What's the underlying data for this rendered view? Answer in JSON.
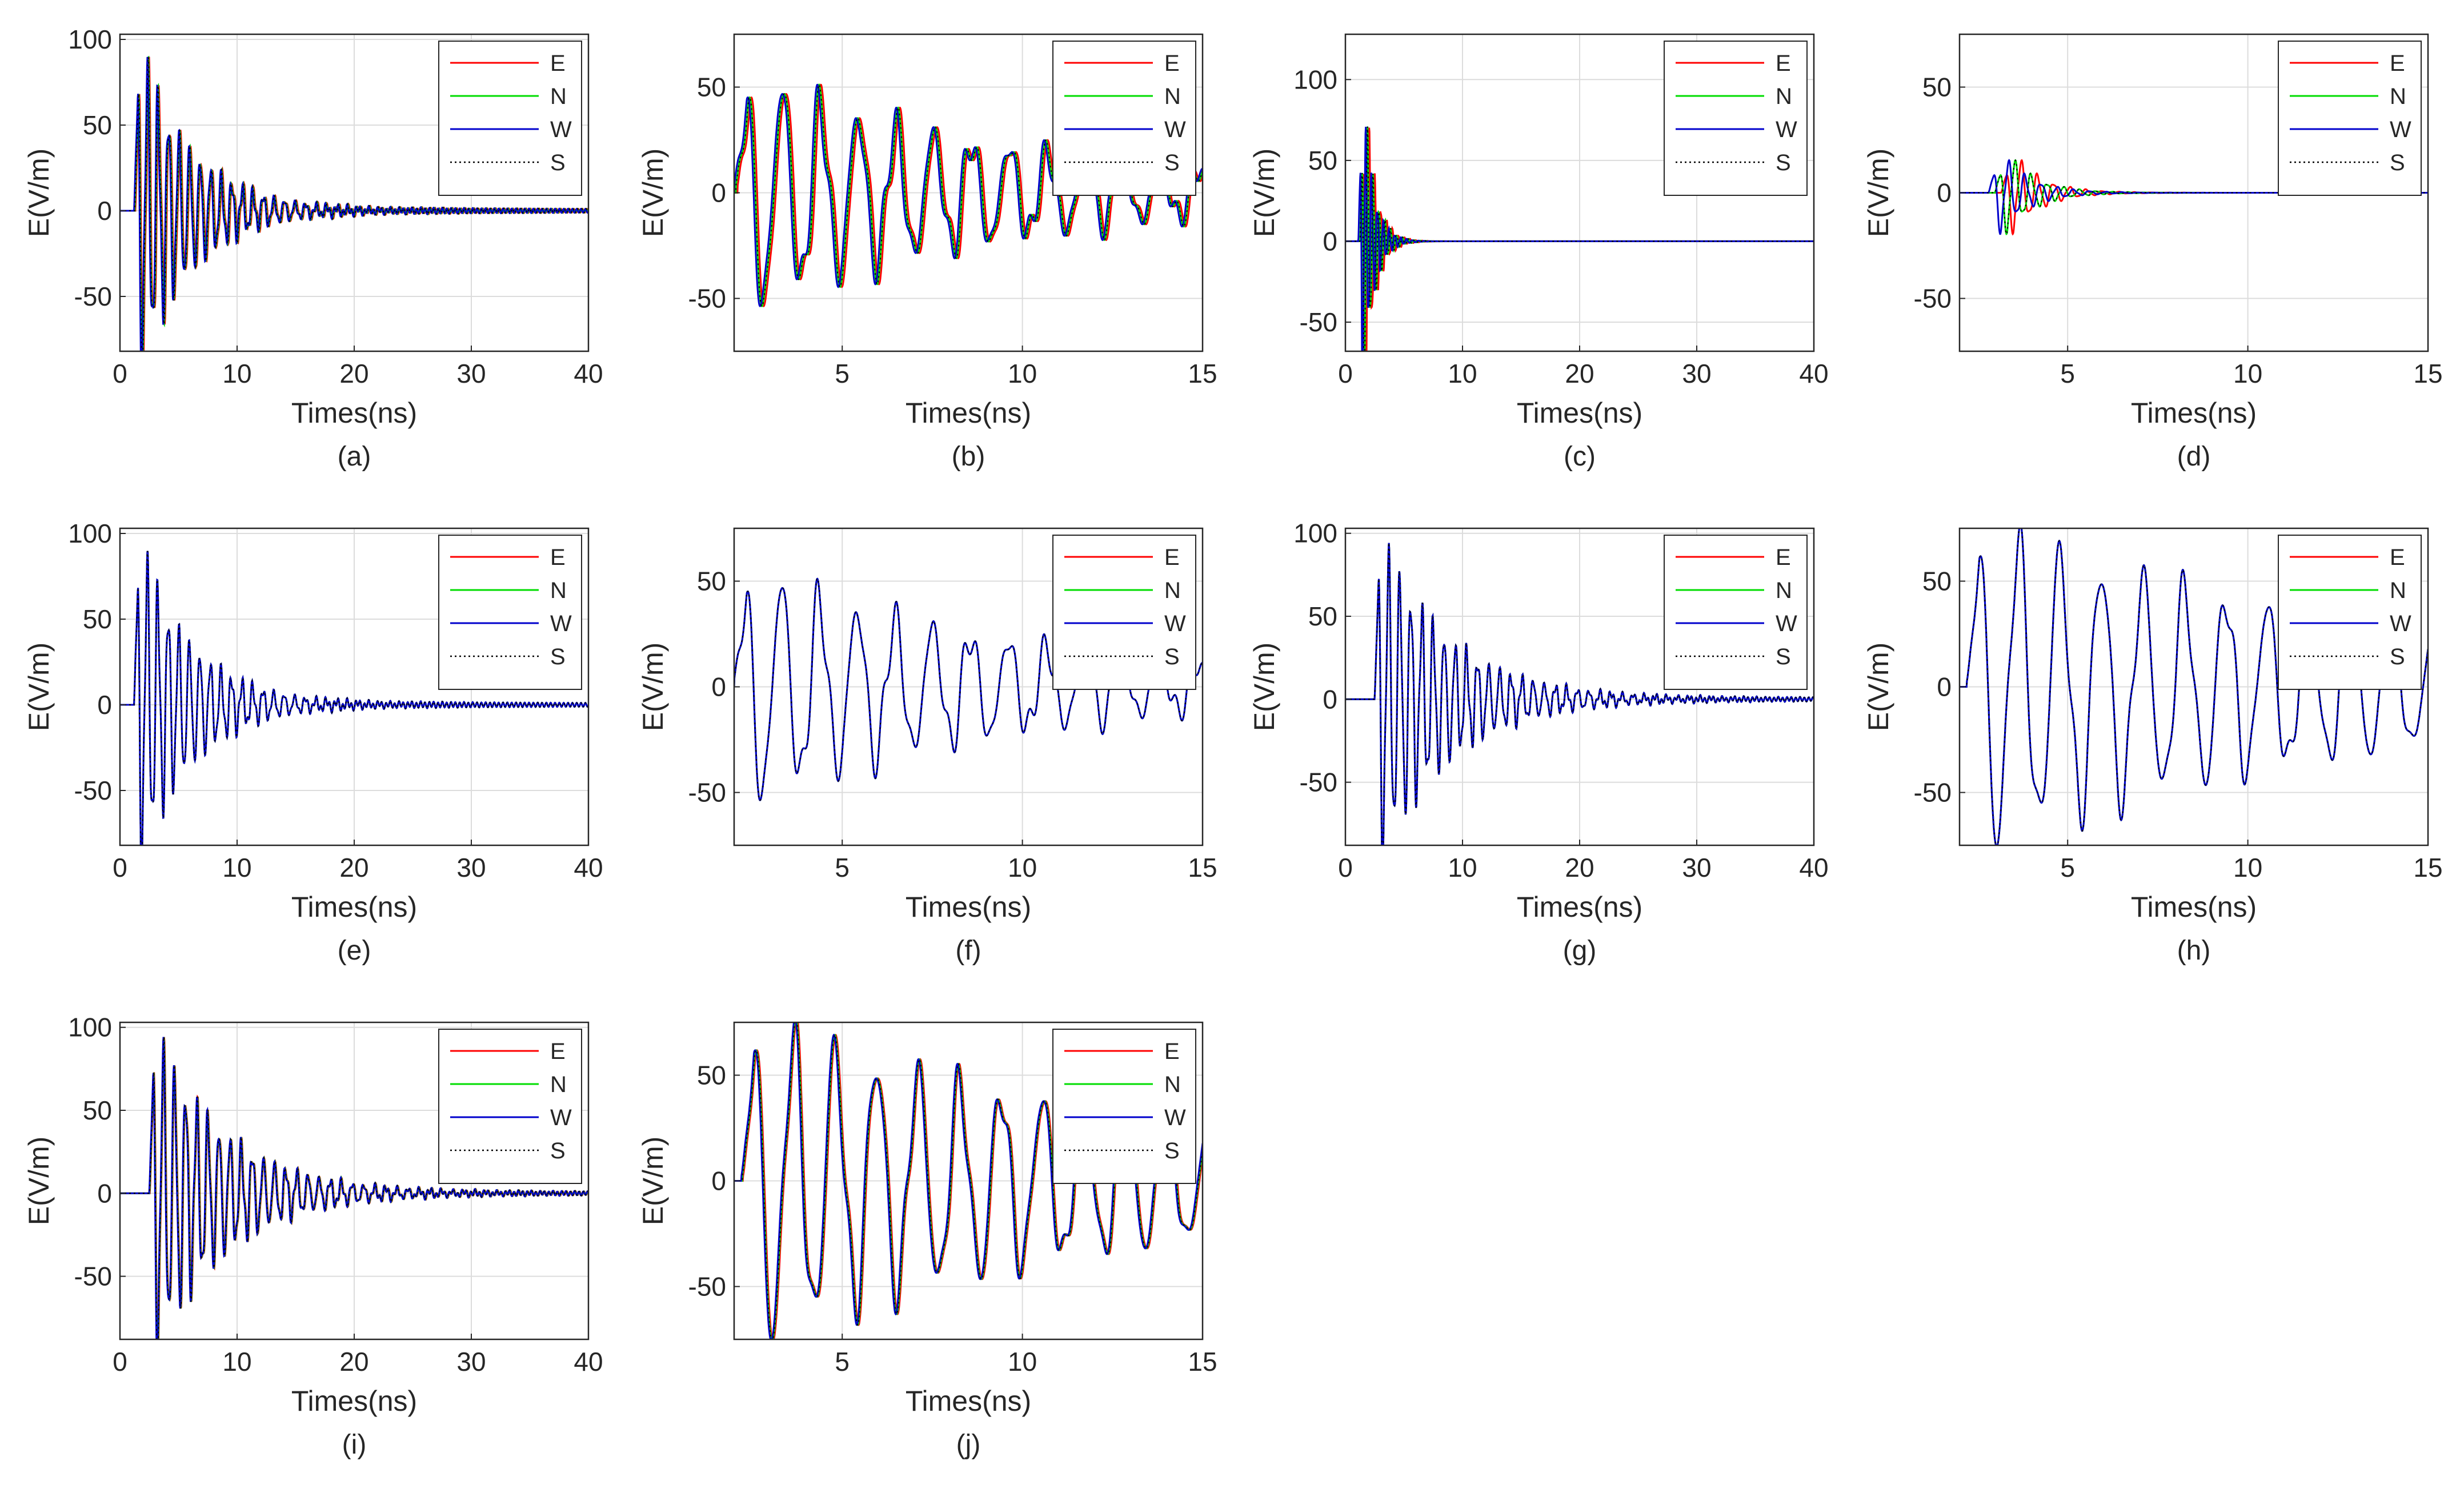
{
  "figure": {
    "legend": [
      {
        "label": "E",
        "color": "#ff0000",
        "style": "solid"
      },
      {
        "label": "N",
        "color": "#00dd00",
        "style": "solid"
      },
      {
        "label": "W",
        "color": "#0000cc",
        "style": "solid"
      },
      {
        "label": "S",
        "color": "#000000",
        "style": "dotted"
      }
    ]
  },
  "chart_data": [
    {
      "id": "a",
      "type": "line",
      "caption": "(a)",
      "xlabel": "Times(ns)",
      "ylabel": "E(V/m)",
      "xlim": [
        0,
        40
      ],
      "ylim": [
        -82,
        103
      ],
      "xticks": [
        0,
        10,
        20,
        30,
        40
      ],
      "yticks": [
        -50,
        0,
        50,
        100
      ],
      "grid": true,
      "legend_position": "top-right",
      "series": [
        {
          "name": "E"
        },
        {
          "name": "N"
        },
        {
          "name": "W"
        },
        {
          "name": "S"
        }
      ],
      "signal": {
        "t0": 1.2,
        "amp": 100,
        "period": 0.9,
        "decay": 4.5,
        "noise": 3,
        "spread": 0.12
      }
    },
    {
      "id": "b",
      "type": "line",
      "caption": "(b)",
      "xlabel": "Times(ns)",
      "ylabel": "E(V/m)",
      "xlim": [
        2,
        15
      ],
      "ylim": [
        -75,
        75
      ],
      "xticks": [
        5,
        10,
        15
      ],
      "yticks": [
        -50,
        0,
        50
      ],
      "grid": true,
      "legend_position": "top-right",
      "series": [
        {
          "name": "E"
        },
        {
          "name": "N"
        },
        {
          "name": "W"
        },
        {
          "name": "S"
        }
      ],
      "signal": {
        "t0": 2.0,
        "amp": 55,
        "period": 1.05,
        "decay": 8,
        "noise": 6,
        "spread": 0.1
      }
    },
    {
      "id": "c",
      "type": "line",
      "caption": "(c)",
      "xlabel": "Times(ns)",
      "ylabel": "E(V/m)",
      "xlim": [
        0,
        40
      ],
      "ylim": [
        -68,
        128
      ],
      "xticks": [
        0,
        10,
        20,
        30,
        40
      ],
      "yticks": [
        -50,
        0,
        50,
        100
      ],
      "grid": true,
      "legend_position": "top-right",
      "series": [
        {
          "name": "E"
        },
        {
          "name": "N"
        },
        {
          "name": "W"
        },
        {
          "name": "S"
        }
      ],
      "signal": {
        "t0": 1.1,
        "amp": 128,
        "period": 0.5,
        "decay": 0.9,
        "noise": 0,
        "spread": 0.3
      }
    },
    {
      "id": "d",
      "type": "line",
      "caption": "(d)",
      "xlabel": "Times(ns)",
      "ylabel": "E(V/m)",
      "xlim": [
        2,
        15
      ],
      "ylim": [
        -75,
        75
      ],
      "xticks": [
        5,
        10,
        15
      ],
      "yticks": [
        -50,
        0,
        50
      ],
      "grid": true,
      "legend_position": "top-right",
      "series": [
        {
          "name": "E"
        },
        {
          "name": "N"
        },
        {
          "name": "W"
        },
        {
          "name": "S"
        }
      ],
      "signal": {
        "t0": 2.8,
        "amp": 28,
        "period": 0.45,
        "decay": 0.8,
        "noise": 0,
        "spread": 0.35
      }
    },
    {
      "id": "e",
      "type": "line",
      "caption": "(e)",
      "xlabel": "Times(ns)",
      "ylabel": "E(V/m)",
      "xlim": [
        0,
        40
      ],
      "ylim": [
        -82,
        103
      ],
      "xticks": [
        0,
        10,
        20,
        30,
        40
      ],
      "yticks": [
        -50,
        0,
        50,
        100
      ],
      "grid": true,
      "legend_position": "top-right",
      "series": [
        {
          "name": "E"
        },
        {
          "name": "N"
        },
        {
          "name": "W"
        },
        {
          "name": "S"
        }
      ],
      "signal": {
        "t0": 1.2,
        "amp": 100,
        "period": 0.9,
        "decay": 4.5,
        "noise": 3,
        "spread": 0
      }
    },
    {
      "id": "f",
      "type": "line",
      "caption": "(f)",
      "xlabel": "Times(ns)",
      "ylabel": "E(V/m)",
      "xlim": [
        2,
        15
      ],
      "ylim": [
        -75,
        75
      ],
      "xticks": [
        5,
        10,
        15
      ],
      "yticks": [
        -50,
        0,
        50
      ],
      "grid": true,
      "legend_position": "top-right",
      "series": [
        {
          "name": "E"
        },
        {
          "name": "N"
        },
        {
          "name": "W"
        },
        {
          "name": "S"
        }
      ],
      "signal": {
        "t0": 2.0,
        "amp": 55,
        "period": 1.05,
        "decay": 8,
        "noise": 6,
        "spread": 0
      }
    },
    {
      "id": "g",
      "type": "line",
      "caption": "(g)",
      "xlabel": "Times(ns)",
      "ylabel": "E(V/m)",
      "xlim": [
        0,
        40
      ],
      "ylim": [
        -88,
        103
      ],
      "xticks": [
        0,
        10,
        20,
        30,
        40
      ],
      "yticks": [
        -50,
        0,
        50,
        100
      ],
      "grid": true,
      "legend_position": "top-right",
      "series": [
        {
          "name": "E"
        },
        {
          "name": "N"
        },
        {
          "name": "W"
        },
        {
          "name": "S"
        }
      ],
      "signal": {
        "t0": 2.5,
        "amp": 100,
        "period": 0.95,
        "decay": 6,
        "noise": 3,
        "spread": 0
      }
    },
    {
      "id": "h",
      "type": "line",
      "caption": "(h)",
      "xlabel": "Times(ns)",
      "ylabel": "E(V/m)",
      "xlim": [
        2,
        15
      ],
      "ylim": [
        -75,
        75
      ],
      "xticks": [
        5,
        10,
        15
      ],
      "yticks": [
        -50,
        0,
        50
      ],
      "grid": true,
      "legend_position": "top-right",
      "series": [
        {
          "name": "E"
        },
        {
          "name": "N"
        },
        {
          "name": "W"
        },
        {
          "name": "S"
        }
      ],
      "signal": {
        "t0": 2.2,
        "amp": 75,
        "period": 1.15,
        "decay": 12,
        "noise": 4,
        "spread": 0
      }
    },
    {
      "id": "i",
      "type": "line",
      "caption": "(i)",
      "xlabel": "Times(ns)",
      "ylabel": "E(V/m)",
      "xlim": [
        0,
        40
      ],
      "ylim": [
        -88,
        103
      ],
      "xticks": [
        0,
        10,
        20,
        30,
        40
      ],
      "yticks": [
        -50,
        0,
        50,
        100
      ],
      "grid": true,
      "legend_position": "top-right",
      "series": [
        {
          "name": "E"
        },
        {
          "name": "N"
        },
        {
          "name": "W"
        },
        {
          "name": "S"
        }
      ],
      "signal": {
        "t0": 2.5,
        "amp": 100,
        "period": 0.95,
        "decay": 6,
        "noise": 3,
        "spread": 0.06
      }
    },
    {
      "id": "j",
      "type": "line",
      "caption": "(j)",
      "xlabel": "Times(ns)",
      "ylabel": "E(V/m)",
      "xlim": [
        2,
        15
      ],
      "ylim": [
        -75,
        75
      ],
      "xticks": [
        5,
        10,
        15
      ],
      "yticks": [
        -50,
        0,
        50
      ],
      "grid": true,
      "legend_position": "top-right",
      "series": [
        {
          "name": "E"
        },
        {
          "name": "N"
        },
        {
          "name": "W"
        },
        {
          "name": "S"
        }
      ],
      "signal": {
        "t0": 2.2,
        "amp": 75,
        "period": 1.15,
        "decay": 12,
        "noise": 4,
        "spread": 0.05
      }
    }
  ]
}
